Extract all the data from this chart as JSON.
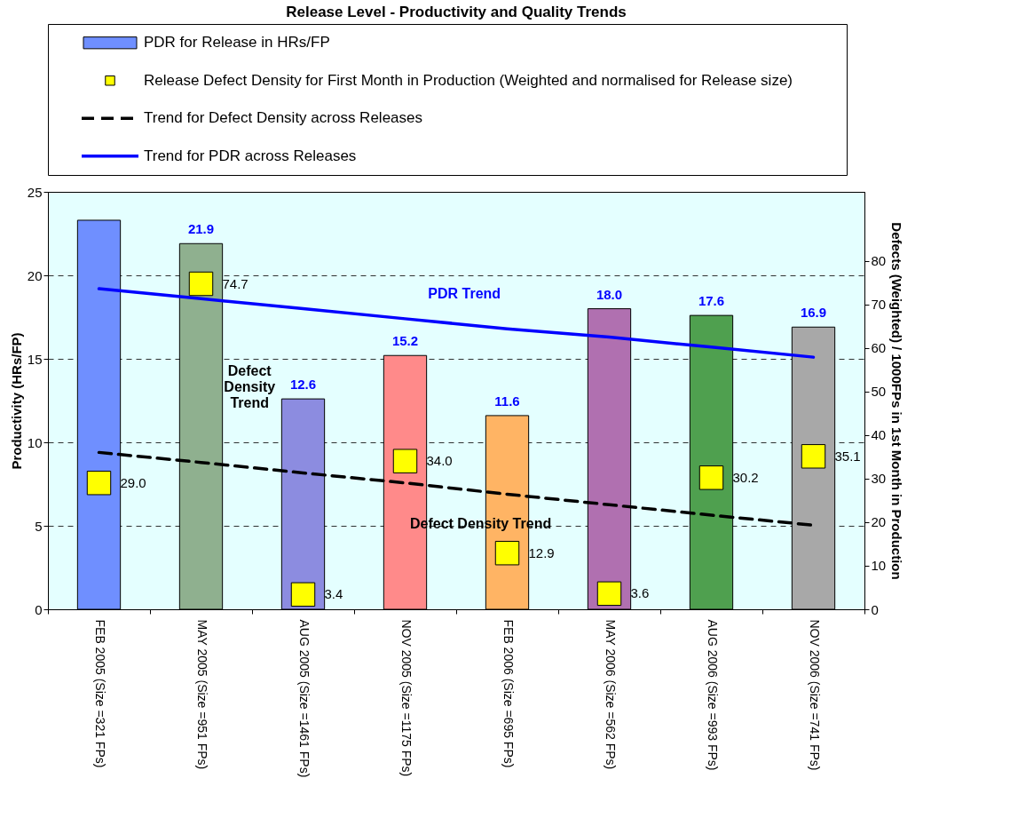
{
  "chart_data": {
    "type": "bar",
    "title": "Release Level  - Productivity and Quality Trends",
    "categories": [
      "FEB 2005 (Size =321 FPs)",
      "MAY 2005 (Size =951 FPs)",
      "AUG 2005 (Size =1461 FPs)",
      "NOV 2005 (Size =1175 FPs)",
      "FEB 2006 (Size =695 FPs)",
      "MAY 2006 (Size =562 FPs)",
      "AUG 2006 (Size =993 FPs)",
      "NOV 2006 (Size =741 FPs)"
    ],
    "ylabel": "Productivity (HRs/FP)",
    "y2label": "Defects (Weighted) / 1000FPs in 1st Month in Production",
    "ylim": [
      0,
      25
    ],
    "yticks": [
      0,
      5,
      10,
      15,
      20,
      25
    ],
    "y2lim": [
      0,
      95.8
    ],
    "y2ticks": [
      0,
      10,
      20,
      30,
      40,
      50,
      60,
      70,
      80
    ],
    "grid": "y",
    "legend": "top",
    "series": [
      {
        "name": "PDR for Release in HRs/FP",
        "colors": [
          "#6f8fff",
          "#8fb08f",
          "#8c8ce0",
          "#ff8a8a",
          "#ffb464",
          "#b070b0",
          "#4fa04f",
          "#a8a8a8"
        ],
        "values": [
          23.3,
          21.9,
          12.6,
          15.2,
          11.6,
          18.0,
          17.6,
          16.9
        ],
        "value_labels": [
          null,
          "21.9",
          "12.6",
          "15.2",
          "11.6",
          "18.0",
          "17.6",
          "16.9"
        ]
      },
      {
        "name": "Release Defect Density for First Month in Production (Weighted and normalised for Release size)",
        "type": "scatter",
        "axis": "y2",
        "color": "#ffff00",
        "marker": "square",
        "values": [
          29.0,
          74.7,
          3.4,
          34.0,
          12.9,
          3.6,
          30.2,
          35.1
        ],
        "value_labels": [
          "29.0",
          "74.7",
          "3.4",
          "34.0",
          "12.9",
          "3.6",
          "30.2",
          "35.1"
        ]
      },
      {
        "name": "Trend for Defect Density across Releases",
        "type": "line",
        "axis": "y2",
        "color": "#000000",
        "line_style": "dashed",
        "values": [
          36.0,
          33.7,
          31.3,
          29.0,
          26.4,
          24.0,
          21.6,
          19.3
        ]
      },
      {
        "name": "Trend for PDR across Releases",
        "type": "line",
        "color": "#0000ff",
        "line_style": "solid",
        "values": [
          19.2,
          18.6,
          18.0,
          17.4,
          16.8,
          16.3,
          15.7,
          15.1
        ]
      }
    ],
    "annotations": [
      "PDR Trend",
      "Defect Density Trend",
      "Defect Density Trend"
    ]
  }
}
